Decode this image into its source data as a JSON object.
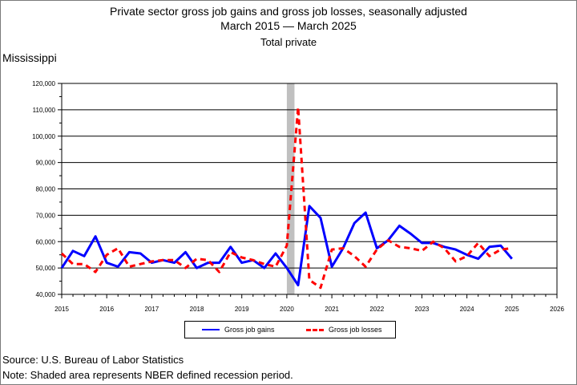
{
  "title": {
    "line1": "Private sector gross job gains and gross job losses, seasonally adjusted",
    "line2": "March 2015 — March 2025",
    "line3": "Total private"
  },
  "region": "Mississippi",
  "source": "Source: U.S. Bureau of Labor Statistics",
  "note": "Note: Shaded area represents NBER defined recession period.",
  "chart_data": {
    "type": "line",
    "title": "Private sector gross job gains and gross job losses, seasonally adjusted",
    "xlabel": "",
    "ylabel": "",
    "xlim": [
      2015,
      2026
    ],
    "ylim": [
      40000,
      120000
    ],
    "grid": true,
    "x_ticks": [
      "2015",
      "2016",
      "2017",
      "2018",
      "2019",
      "2020",
      "2021",
      "2022",
      "2023",
      "2024",
      "2025",
      "2026"
    ],
    "y_ticks": [
      "40,000",
      "50,000",
      "60,000",
      "70,000",
      "80,000",
      "90,000",
      "100,000",
      "110,000",
      "120,000"
    ],
    "recession": {
      "start": 2020.0,
      "end": 2020.17
    },
    "legend_position": "bottom",
    "x": [
      2015.0,
      2015.25,
      2015.5,
      2015.75,
      2016.0,
      2016.25,
      2016.5,
      2016.75,
      2017.0,
      2017.25,
      2017.5,
      2017.75,
      2018.0,
      2018.25,
      2018.5,
      2018.75,
      2019.0,
      2019.25,
      2019.5,
      2019.75,
      2020.0,
      2020.25,
      2020.5,
      2020.75,
      2021.0,
      2021.25,
      2021.5,
      2021.75,
      2022.0,
      2022.25,
      2022.5,
      2022.75,
      2023.0,
      2023.25,
      2023.5,
      2023.75,
      2024.0,
      2024.25,
      2024.5,
      2024.75,
      2025.0
    ],
    "series": [
      {
        "name": "Gross job gains",
        "color": "#0000ff",
        "style": "solid",
        "values": [
          50000,
          56500,
          54500,
          62000,
          52000,
          50500,
          56000,
          55500,
          52000,
          53000,
          52000,
          56000,
          50000,
          52000,
          52000,
          58000,
          52000,
          53000,
          50000,
          55500,
          50000,
          43500,
          73500,
          69000,
          50500,
          57500,
          67000,
          71000,
          57500,
          60500,
          66000,
          63000,
          59500,
          59500,
          58000,
          57000,
          55000,
          53500,
          58000,
          58500,
          53500
        ]
      },
      {
        "name": "Gross job losses",
        "color": "#ff0000",
        "style": "dashed",
        "values": [
          55500,
          51500,
          51500,
          48500,
          55000,
          57500,
          50500,
          51500,
          52500,
          53000,
          53000,
          50000,
          53500,
          53000,
          48500,
          56000,
          54000,
          53000,
          51500,
          50500,
          58500,
          111000,
          45500,
          42500,
          57000,
          57500,
          54500,
          50500,
          57000,
          60500,
          58000,
          57500,
          56500,
          60000,
          57500,
          52500,
          54500,
          59500,
          54500,
          57000,
          57500
        ]
      }
    ]
  }
}
